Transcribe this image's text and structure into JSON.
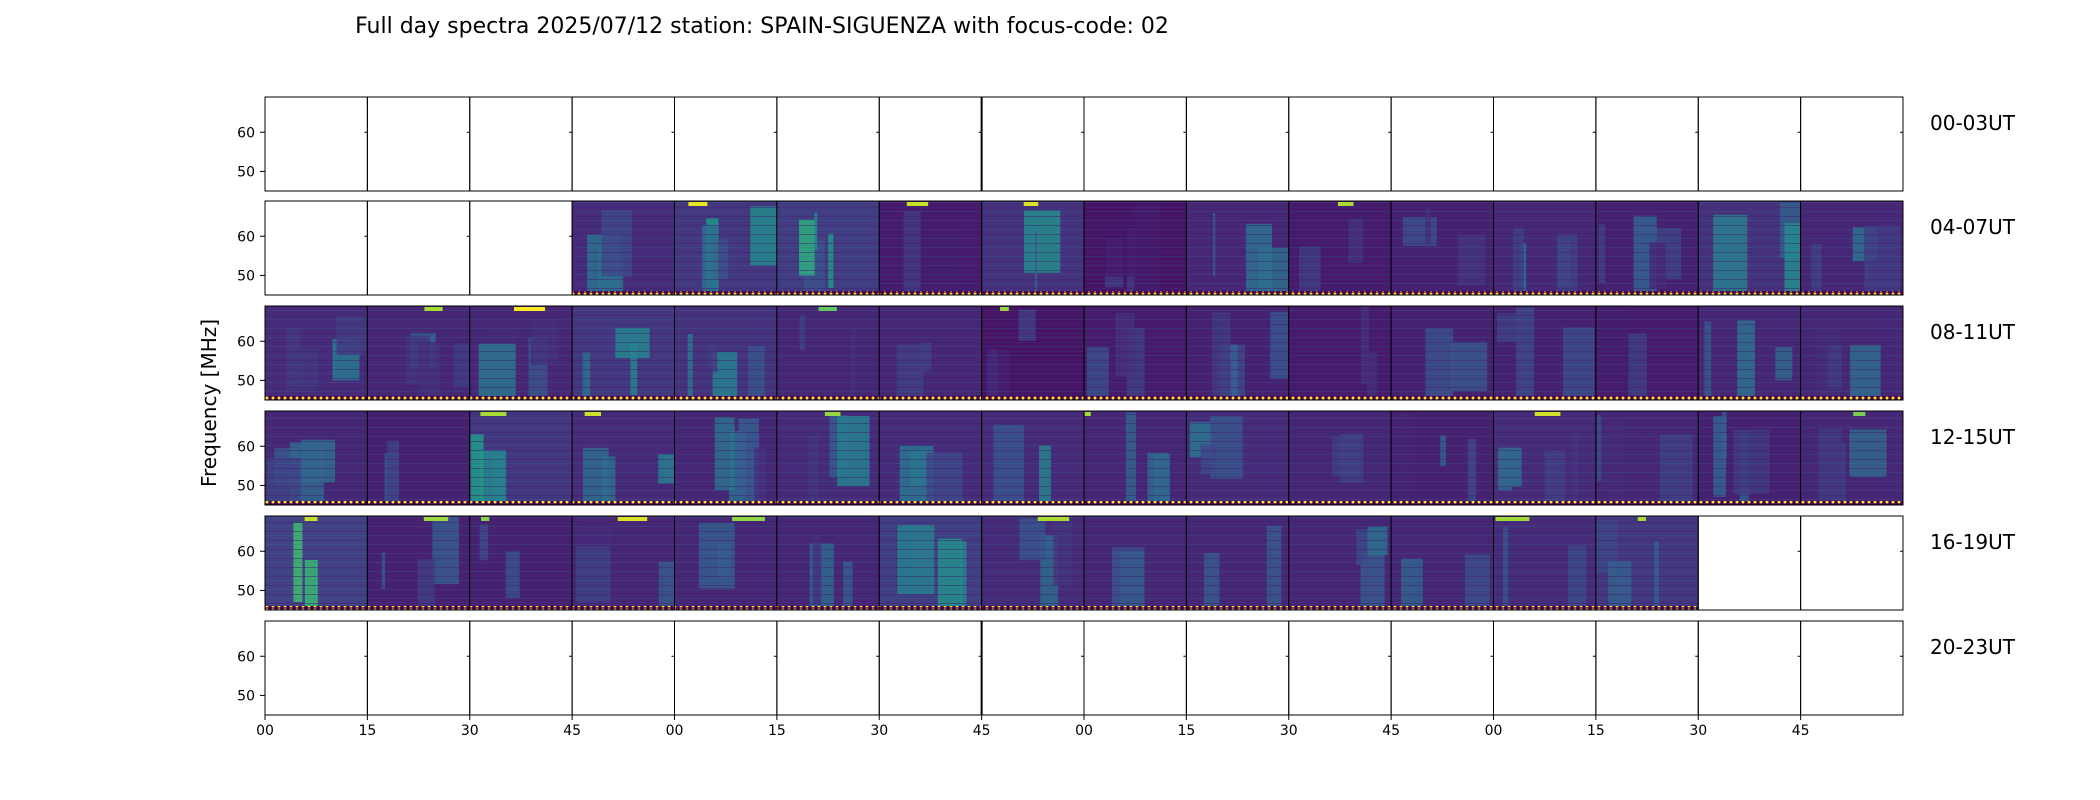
{
  "chart_data": {
    "type": "heatmap",
    "title": "Full day spectra 2025/07/12 station: SPAIN-SIGUENZA with focus-code: 02",
    "ylabel": "Frequency [MHz]",
    "xlabel": "",
    "colormap": "viridis",
    "grid": false,
    "ylim": [
      45,
      69
    ],
    "yticks": [
      50,
      60
    ],
    "xticks": [
      "00",
      "15",
      "30",
      "45",
      "00",
      "15",
      "30",
      "45",
      "00",
      "15",
      "30",
      "45",
      "00",
      "15",
      "30",
      "45"
    ],
    "panel_minutes": 15,
    "panels_per_row": 16,
    "flag_marker_color": "#fde725",
    "rows": [
      {
        "label": "00-03UT",
        "has_data": [
          0,
          0,
          0,
          0,
          0,
          0,
          0,
          0,
          0,
          0,
          0,
          0,
          0,
          0,
          0,
          0
        ],
        "intensity": [
          0,
          0,
          0,
          0,
          0,
          0,
          0,
          0,
          0,
          0,
          0,
          0,
          0,
          0,
          0,
          0
        ]
      },
      {
        "label": "04-07UT",
        "has_data": [
          0,
          0,
          0,
          1,
          1,
          1,
          1,
          1,
          1,
          1,
          1,
          1,
          1,
          1,
          1,
          1
        ],
        "intensity": [
          0,
          0,
          0,
          0.35,
          0.45,
          0.5,
          0.2,
          0.4,
          0.15,
          0.3,
          0.2,
          0.25,
          0.3,
          0.25,
          0.4,
          0.3
        ]
      },
      {
        "label": "08-11UT",
        "has_data": [
          1,
          1,
          1,
          1,
          1,
          1,
          1,
          1,
          1,
          1,
          1,
          1,
          1,
          1,
          1,
          1
        ],
        "intensity": [
          0.35,
          0.3,
          0.3,
          0.45,
          0.4,
          0.3,
          0.3,
          0.15,
          0.2,
          0.25,
          0.2,
          0.25,
          0.25,
          0.2,
          0.3,
          0.3
        ]
      },
      {
        "label": "12-15UT",
        "has_data": [
          1,
          1,
          1,
          1,
          1,
          1,
          1,
          1,
          1,
          1,
          1,
          1,
          1,
          1,
          1,
          1
        ],
        "intensity": [
          0.3,
          0.25,
          0.45,
          0.35,
          0.3,
          0.35,
          0.35,
          0.35,
          0.3,
          0.35,
          0.3,
          0.25,
          0.35,
          0.3,
          0.25,
          0.3
        ]
      },
      {
        "label": "16-19UT",
        "has_data": [
          1,
          1,
          1,
          1,
          1,
          1,
          1,
          1,
          1,
          1,
          1,
          1,
          1,
          1,
          0,
          0
        ],
        "intensity": [
          0.55,
          0.25,
          0.25,
          0.3,
          0.3,
          0.3,
          0.5,
          0.35,
          0.3,
          0.3,
          0.3,
          0.3,
          0.35,
          0.45,
          0,
          0
        ]
      },
      {
        "label": "20-23UT",
        "has_data": [
          0,
          0,
          0,
          0,
          0,
          0,
          0,
          0,
          0,
          0,
          0,
          0,
          0,
          0,
          0,
          0
        ],
        "intensity": [
          0,
          0,
          0,
          0,
          0,
          0,
          0,
          0,
          0,
          0,
          0,
          0,
          0,
          0,
          0,
          0
        ]
      }
    ]
  }
}
